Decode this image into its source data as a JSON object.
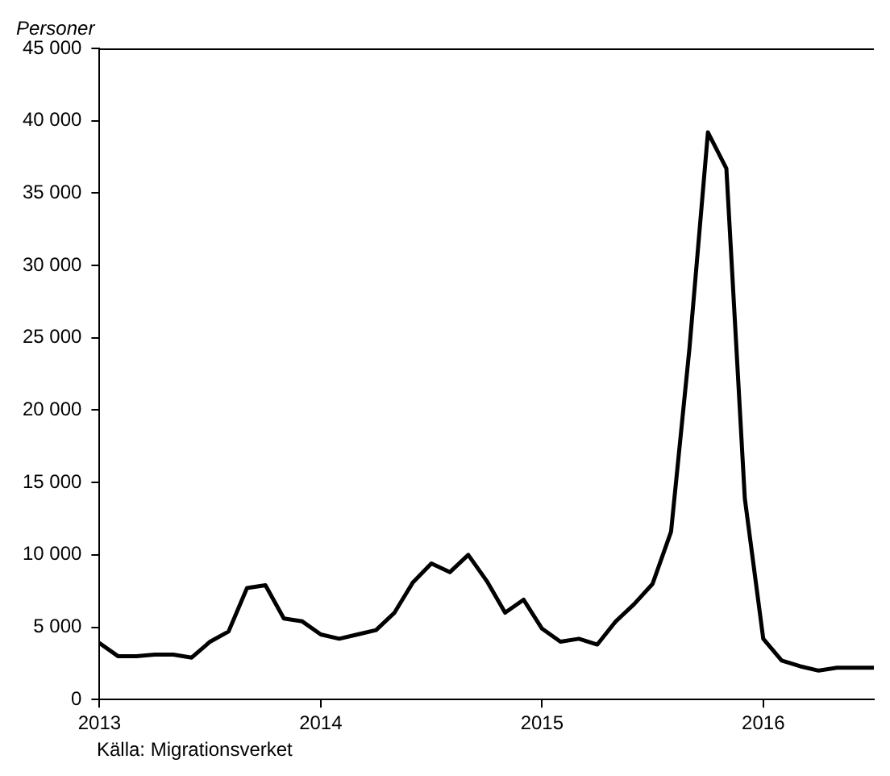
{
  "chart_data": {
    "type": "line",
    "ylabel": "Personer",
    "annotations": [
      "Källa: Migrationsverket"
    ],
    "x": [
      "2013-01",
      "2013-02",
      "2013-03",
      "2013-04",
      "2013-05",
      "2013-06",
      "2013-07",
      "2013-08",
      "2013-09",
      "2013-10",
      "2013-11",
      "2013-12",
      "2014-01",
      "2014-02",
      "2014-03",
      "2014-04",
      "2014-05",
      "2014-06",
      "2014-07",
      "2014-08",
      "2014-09",
      "2014-10",
      "2014-11",
      "2014-12",
      "2015-01",
      "2015-02",
      "2015-03",
      "2015-04",
      "2015-05",
      "2015-06",
      "2015-07",
      "2015-08",
      "2015-09",
      "2015-10",
      "2015-11",
      "2015-12",
      "2016-01",
      "2016-02",
      "2016-03",
      "2016-04",
      "2016-05",
      "2016-06",
      "2016-07"
    ],
    "series": [
      {
        "color": "#000000",
        "values": [
          3900,
          3000,
          3000,
          3100,
          3100,
          2900,
          4000,
          4700,
          7700,
          7900,
          5600,
          5400,
          4500,
          4200,
          4500,
          4800,
          6000,
          8100,
          9400,
          8800,
          10000,
          8200,
          6000,
          6900,
          4900,
          4000,
          4200,
          3800,
          5400,
          6600,
          8000,
          11600,
          24300,
          39200,
          36700,
          13900,
          4200,
          2700,
          2300,
          2000,
          2200,
          2200,
          2200
        ]
      }
    ],
    "xlim": [
      "2013-01",
      "2016-07"
    ],
    "xticks": [
      "2013",
      "2014",
      "2015",
      "2016"
    ],
    "ylim": [
      0,
      45000
    ],
    "yticks": [
      0,
      {
        "value": 5000,
        "label": "5 000"
      },
      {
        "value": 10000,
        "label": "10 000"
      },
      {
        "value": 15000,
        "label": "15 000"
      },
      {
        "value": 20000,
        "label": "20 000"
      },
      {
        "value": 25000,
        "label": "25 000"
      },
      {
        "value": 30000,
        "label": "30 000"
      },
      {
        "value": 35000,
        "label": "35 000"
      },
      {
        "value": 40000,
        "label": "40 000"
      },
      {
        "value": 45000,
        "label": "45 000"
      }
    ],
    "grid": false,
    "legend": false,
    "marker": "none",
    "line_style": "solid"
  }
}
